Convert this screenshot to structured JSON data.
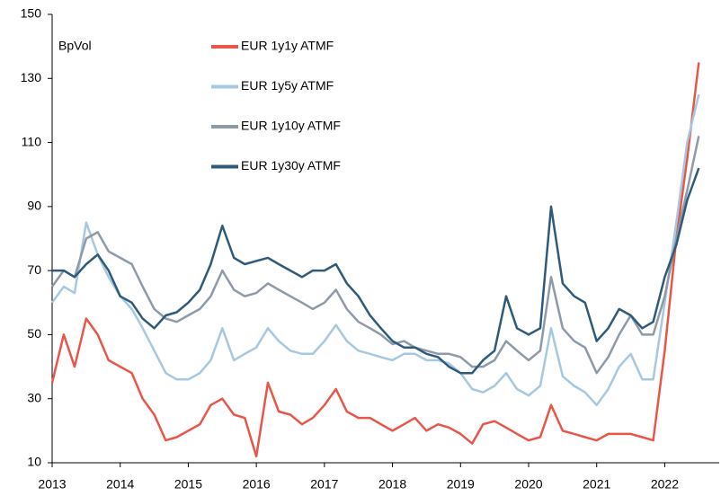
{
  "chart_data": {
    "type": "line",
    "annotation": "BpVol",
    "x": [
      2013,
      2013.17,
      2013.33,
      2013.5,
      2013.67,
      2013.83,
      2014,
      2014.17,
      2014.33,
      2014.5,
      2014.67,
      2014.83,
      2015,
      2015.17,
      2015.33,
      2015.5,
      2015.67,
      2015.83,
      2016,
      2016.17,
      2016.33,
      2016.5,
      2016.67,
      2016.83,
      2017,
      2017.17,
      2017.33,
      2017.5,
      2017.67,
      2017.83,
      2018,
      2018.17,
      2018.33,
      2018.5,
      2018.67,
      2018.83,
      2019,
      2019.17,
      2019.33,
      2019.5,
      2019.67,
      2019.83,
      2020,
      2020.17,
      2020.33,
      2020.5,
      2020.67,
      2020.83,
      2021,
      2021.17,
      2021.33,
      2021.5,
      2021.67,
      2021.83,
      2022,
      2022.17,
      2022.33,
      2022.5
    ],
    "series": [
      {
        "name": "EUR 1y1y ATMF",
        "color": "#e8564a",
        "values": [
          35,
          50,
          40,
          55,
          50,
          42,
          40,
          38,
          30,
          25,
          17,
          18,
          20,
          22,
          28,
          30,
          25,
          24,
          12,
          35,
          26,
          25,
          22,
          24,
          28,
          33,
          26,
          24,
          24,
          22,
          20,
          22,
          24,
          20,
          22,
          21,
          19,
          16,
          22,
          23,
          21,
          19,
          17,
          18,
          28,
          20,
          19,
          18,
          17,
          19,
          19,
          19,
          18,
          17,
          45,
          80,
          105,
          135
        ]
      },
      {
        "name": "EUR 1y5y ATMF",
        "color": "#a6c8e0",
        "values": [
          60,
          65,
          63,
          85,
          75,
          68,
          62,
          58,
          52,
          45,
          38,
          36,
          36,
          38,
          42,
          52,
          42,
          44,
          46,
          52,
          48,
          45,
          44,
          44,
          48,
          53,
          48,
          45,
          44,
          43,
          42,
          44,
          44,
          42,
          42,
          41,
          38,
          33,
          32,
          34,
          38,
          33,
          31,
          34,
          52,
          37,
          34,
          32,
          28,
          33,
          40,
          44,
          36,
          36,
          60,
          85,
          110,
          125
        ]
      },
      {
        "name": "EUR 1y10y ATMF",
        "color": "#8e9aa8",
        "values": [
          65,
          70,
          68,
          80,
          82,
          76,
          74,
          72,
          65,
          58,
          55,
          54,
          56,
          58,
          62,
          70,
          64,
          62,
          63,
          66,
          64,
          62,
          60,
          58,
          60,
          64,
          58,
          54,
          52,
          50,
          47,
          48,
          46,
          45,
          44,
          44,
          43,
          40,
          40,
          42,
          48,
          45,
          42,
          45,
          68,
          52,
          48,
          46,
          38,
          43,
          50,
          56,
          50,
          50,
          62,
          80,
          95,
          112
        ]
      },
      {
        "name": "EUR 1y30y ATMF",
        "color": "#2f5a7a",
        "values": [
          70,
          70,
          68,
          72,
          75,
          70,
          62,
          60,
          55,
          52,
          56,
          57,
          60,
          64,
          72,
          84,
          74,
          72,
          73,
          74,
          72,
          70,
          68,
          70,
          70,
          72,
          66,
          62,
          56,
          52,
          48,
          46,
          46,
          44,
          43,
          40,
          38,
          38,
          42,
          45,
          62,
          52,
          50,
          52,
          90,
          66,
          62,
          60,
          48,
          52,
          58,
          56,
          52,
          54,
          68,
          78,
          92,
          102
        ]
      }
    ],
    "xlim": [
      2013,
      2022.8
    ],
    "xticks": [
      2013,
      2014,
      2015,
      2016,
      2017,
      2018,
      2019,
      2020,
      2021,
      2022
    ],
    "ylim": [
      10,
      150
    ],
    "yticks": [
      10,
      30,
      50,
      70,
      90,
      110,
      130,
      150
    ],
    "grid": false
  }
}
